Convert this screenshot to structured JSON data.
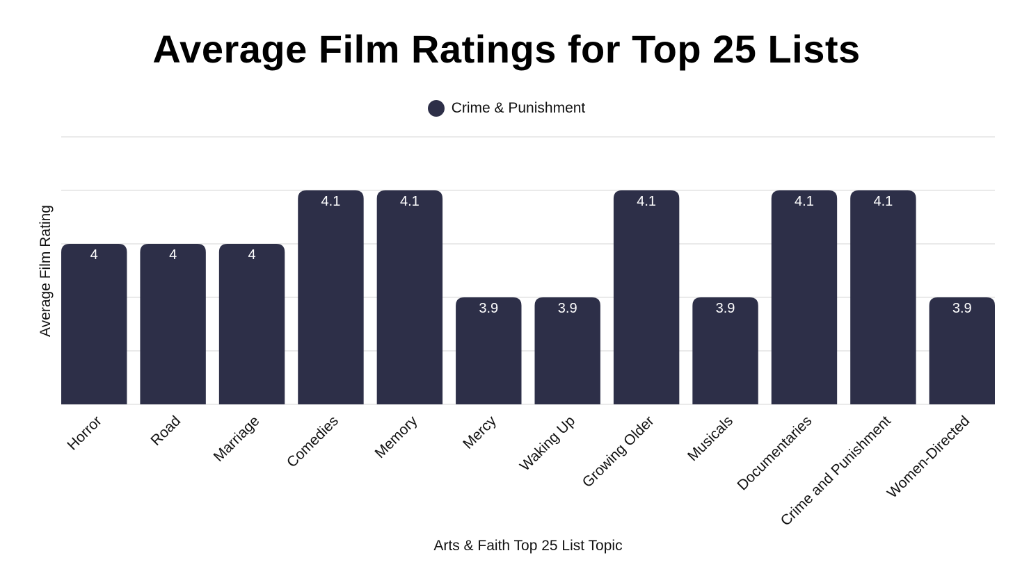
{
  "chart_data": {
    "type": "bar",
    "title": "Average Film Ratings for Top 25 Lists",
    "xlabel": "Arts & Faith Top 25 List Topic",
    "ylabel": "Average Film Rating",
    "categories": [
      "Horror",
      "Road",
      "Marriage",
      "Comedies",
      "Memory",
      "Mercy",
      "Waking Up",
      "Growing Older",
      "Musicals",
      "Documentaries",
      "Crime and Punishment",
      "Women-Directed"
    ],
    "series": [
      {
        "name": "Crime & Punishment",
        "values": [
          4,
          4,
          4,
          4.1,
          4.1,
          3.9,
          3.9,
          4.1,
          3.9,
          4.1,
          4.1,
          3.9
        ]
      }
    ],
    "ylim": [
      3.7,
      4.2
    ],
    "grid": true,
    "legend_position": "top-center",
    "colors": {
      "bar": "#2d2f48",
      "grid": "#d4d4d4",
      "bar_label": "#ffffff"
    }
  }
}
